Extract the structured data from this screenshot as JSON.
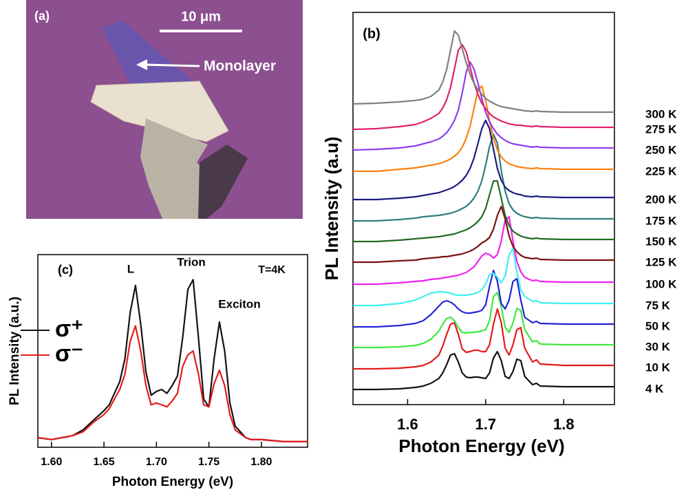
{
  "panel_a": {
    "label": "(a)",
    "scale_bar": "10 μm",
    "annotation": "Monolayer"
  },
  "chart_data": [
    {
      "type": "line",
      "panel_label": "(b)",
      "x_label": "Photon Energy (eV)",
      "y_label": "PL Intensity (a.u)",
      "xlim": [
        1.53,
        1.865
      ],
      "xticks": [
        1.6,
        1.7,
        1.8
      ],
      "ylim": [
        0,
        570
      ],
      "legend": "right",
      "x": [
        1.53,
        1.56,
        1.59,
        1.61,
        1.62,
        1.63,
        1.64,
        1.645,
        1.65,
        1.655,
        1.66,
        1.665,
        1.67,
        1.675,
        1.68,
        1.685,
        1.69,
        1.695,
        1.7,
        1.705,
        1.71,
        1.715,
        1.72,
        1.725,
        1.73,
        1.735,
        1.74,
        1.745,
        1.75,
        1.76,
        1.765,
        1.77,
        1.8,
        1.83,
        1.865
      ],
      "series": [
        {
          "name": "4 K",
          "color": "#111111",
          "values": [
            22,
            22,
            23,
            25,
            27,
            31,
            38,
            46,
            58,
            72,
            74,
            62,
            46,
            40,
            39,
            40,
            40,
            39,
            38,
            46,
            68,
            77,
            64,
            41,
            38,
            48,
            66,
            64,
            41,
            29,
            31,
            27,
            26,
            26,
            26
          ]
        },
        {
          "name": "10 K",
          "color": "#e31a1c",
          "values": [
            52,
            52,
            53,
            55,
            57,
            62,
            72,
            85,
            102,
            117,
            119,
            102,
            81,
            76,
            77,
            79,
            79,
            77,
            77,
            87,
            117,
            139,
            119,
            82,
            72,
            87,
            109,
            112,
            82,
            62,
            65,
            59,
            57,
            57,
            57
          ]
        },
        {
          "name": "30 K",
          "color": "#3ee83e",
          "values": [
            83,
            83,
            84,
            86,
            89,
            95,
            107,
            117,
            125,
            127,
            122,
            112,
            105,
            104,
            105,
            105,
            106,
            107,
            109,
            122,
            157,
            163,
            142,
            112,
            105,
            119,
            140,
            137,
            109,
            91,
            93,
            88,
            87,
            87,
            87
          ]
        },
        {
          "name": "50 K",
          "color": "#2424d8",
          "values": [
            113,
            113,
            115,
            118,
            122,
            131,
            143,
            149,
            151,
            149,
            145,
            139,
            135,
            133,
            133,
            134,
            135,
            137,
            145,
            172,
            195,
            179,
            147,
            139,
            152,
            179,
            183,
            152,
            127,
            119,
            121,
            118,
            117,
            117,
            117
          ]
        },
        {
          "name": "75 K",
          "color": "#3ff0f0",
          "values": [
            144,
            144,
            147,
            152,
            157,
            162,
            164,
            164,
            163,
            162,
            160,
            159,
            159,
            159,
            160,
            161,
            163,
            167,
            175,
            189,
            191,
            185,
            177,
            187,
            217,
            227,
            192,
            167,
            157,
            150,
            151,
            148,
            147,
            147,
            147
          ]
        },
        {
          "name": "100 K",
          "color": "#ee22ee",
          "values": [
            175,
            175,
            177,
            179,
            180,
            182,
            183,
            184,
            185,
            186,
            187,
            188,
            190,
            192,
            196,
            200,
            208,
            216,
            220,
            218,
            213,
            218,
            238,
            268,
            273,
            238,
            208,
            193,
            185,
            180,
            181,
            179,
            178,
            178,
            178
          ]
        },
        {
          "name": "125 K",
          "color": "#7a1010",
          "values": [
            207,
            207,
            209,
            210,
            212,
            213,
            214,
            215,
            215,
            216,
            217,
            218,
            219,
            221,
            223,
            226,
            230,
            235,
            238,
            243,
            255,
            275,
            288,
            270,
            245,
            230,
            222,
            217,
            214,
            212,
            213,
            211,
            210,
            210,
            210
          ]
        },
        {
          "name": "150 K",
          "color": "#226b22",
          "values": [
            237,
            237,
            239,
            241,
            242,
            243,
            244,
            245,
            246,
            247,
            248,
            250,
            252,
            254,
            257,
            261,
            266,
            273,
            285,
            305,
            325,
            325,
            300,
            275,
            260,
            252,
            248,
            245,
            243,
            241,
            242,
            241,
            240,
            240,
            240
          ]
        },
        {
          "name": "175 K",
          "color": "#2f7d7d",
          "values": [
            267,
            267,
            269,
            271,
            273,
            274,
            275,
            276,
            277,
            278,
            280,
            282,
            285,
            288,
            293,
            300,
            310,
            325,
            348,
            375,
            393,
            380,
            340,
            310,
            292,
            283,
            278,
            275,
            273,
            271,
            272,
            271,
            270,
            270,
            270
          ]
        },
        {
          "name": "200 K",
          "color": "#1b1b80",
          "values": [
            298,
            298,
            300,
            302,
            304,
            306,
            308,
            310,
            312,
            314,
            317,
            321,
            326,
            333,
            343,
            358,
            379,
            401,
            413,
            401,
            371,
            343,
            326,
            316,
            311,
            308,
            306,
            305,
            303,
            302,
            303,
            302,
            301,
            301,
            301
          ]
        },
        {
          "name": "225 K",
          "color": "#ff7f0e",
          "values": [
            339,
            339,
            342,
            344,
            346,
            348,
            350,
            352,
            354,
            357,
            361,
            366,
            374,
            387,
            404,
            430,
            457,
            463,
            442,
            412,
            387,
            370,
            360,
            354,
            350,
            348,
            346,
            345,
            344,
            343,
            344,
            343,
            342,
            342,
            342
          ]
        },
        {
          "name": "250 K",
          "color": "#8a3ff0",
          "values": [
            370,
            371,
            373,
            376,
            379,
            382,
            386,
            390,
            395,
            403,
            413,
            428,
            453,
            483,
            498,
            488,
            468,
            445,
            425,
            411,
            401,
            393,
            388,
            384,
            381,
            379,
            378,
            377,
            376,
            374,
            375,
            374,
            373,
            373,
            373
          ]
        },
        {
          "name": "275 K",
          "color": "#e2206e",
          "values": [
            400,
            401,
            404,
            407,
            411,
            416,
            423,
            431,
            443,
            461,
            488,
            515,
            523,
            513,
            491,
            468,
            451,
            438,
            430,
            423,
            418,
            415,
            412,
            410,
            408,
            407,
            406,
            406,
            405,
            404,
            405,
            404,
            403,
            403,
            403
          ]
        },
        {
          "name": "300 K",
          "color": "#808080",
          "values": [
            437,
            438,
            440,
            442,
            444,
            448,
            457,
            469,
            487,
            515,
            543,
            537,
            517,
            497,
            480,
            467,
            458,
            451,
            445,
            441,
            438,
            435,
            433,
            432,
            431,
            430,
            429,
            428,
            427,
            426,
            427,
            426,
            425,
            425,
            425
          ]
        }
      ]
    },
    {
      "type": "line",
      "panel_label": "(c)",
      "x_label": "Photon Energy (eV)",
      "y_label": "PL Intensity (a.u.)",
      "xlim": [
        1.587,
        1.844
      ],
      "xticks": [
        {
          "value": 1.6,
          "label": "1.60"
        },
        {
          "value": 1.65,
          "label": "1.65"
        },
        {
          "value": 1.7,
          "label": "1.70"
        },
        {
          "value": 1.75,
          "label": "1.75"
        },
        {
          "value": 1.8,
          "label": "1.80"
        }
      ],
      "ylim": [
        0,
        100
      ],
      "legend": "upper left",
      "annotations": [
        "L",
        "Trion",
        "Exciton",
        "T=4K"
      ],
      "x": [
        1.587,
        1.6,
        1.61,
        1.62,
        1.63,
        1.64,
        1.65,
        1.655,
        1.66,
        1.665,
        1.67,
        1.675,
        1.68,
        1.685,
        1.69,
        1.695,
        1.7,
        1.705,
        1.71,
        1.715,
        1.72,
        1.725,
        1.73,
        1.735,
        1.74,
        1.745,
        1.75,
        1.755,
        1.76,
        1.765,
        1.77,
        1.775,
        1.78,
        1.785,
        1.79,
        1.8,
        1.82,
        1.844
      ],
      "series": [
        {
          "name": "σ⁺",
          "color": "#111111",
          "values": [
            5,
            4,
            5,
            6,
            9,
            14,
            19,
            22,
            28,
            34,
            46,
            70,
            84,
            64,
            39,
            27,
            29,
            30,
            28,
            32,
            37,
            57,
            82,
            87,
            57,
            25,
            21,
            46,
            65,
            50,
            23,
            11,
            8,
            5,
            4,
            4,
            3,
            3
          ]
        },
        {
          "name": "σ⁻",
          "color": "#e31a1c",
          "values": [
            5,
            4,
            5,
            6,
            8,
            13,
            17,
            20,
            25,
            30,
            38,
            55,
            63,
            50,
            32,
            22,
            23,
            22,
            21,
            24,
            28,
            42,
            48,
            50,
            38,
            22,
            21,
            33,
            40,
            32,
            17,
            9,
            7,
            5,
            4,
            4,
            3,
            3
          ]
        }
      ]
    }
  ]
}
